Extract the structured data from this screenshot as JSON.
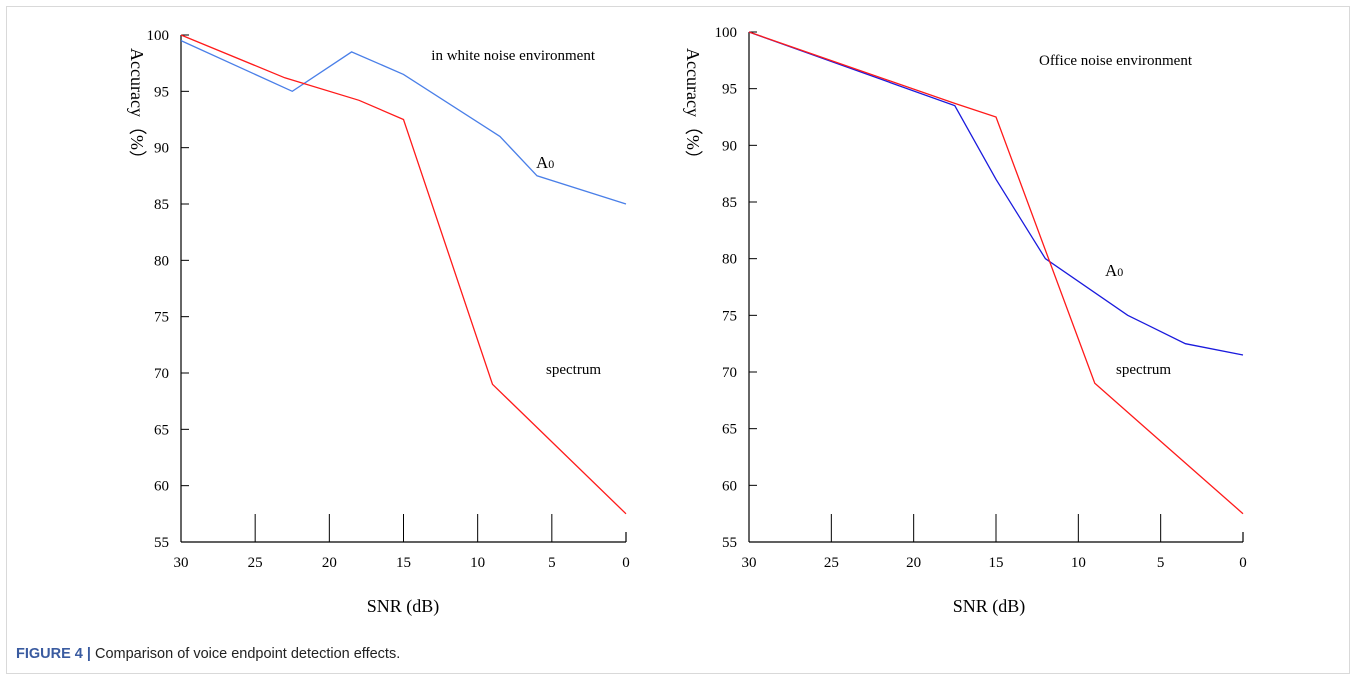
{
  "chart_data": [
    {
      "type": "line",
      "title": "",
      "xlabel": "SNR (dB)",
      "ylabel": "Accuracy（%）",
      "xlim": [
        30,
        0
      ],
      "ylim": [
        55,
        100
      ],
      "x_ticks": [
        "30",
        "25",
        "20",
        "15",
        "10",
        "5",
        "0"
      ],
      "y_ticks": [
        "55",
        "60",
        "65",
        "70",
        "75",
        "80",
        "85",
        "90",
        "95",
        "100"
      ],
      "annotation": "in white noise environment",
      "grid": false,
      "series": [
        {
          "name": "A0",
          "color": "#4a7fe8",
          "points": [
            [
              30,
              99.5
            ],
            [
              22.5,
              95
            ],
            [
              18.5,
              98.5
            ],
            [
              15,
              96.5
            ],
            [
              8.5,
              91
            ],
            [
              6,
              87.5
            ],
            [
              0,
              85
            ]
          ]
        },
        {
          "name": "spectrum",
          "color": "#ff1a1a",
          "points": [
            [
              30,
              100
            ],
            [
              23,
              96.2
            ],
            [
              18,
              94.2
            ],
            [
              15,
              92.5
            ],
            [
              9,
              69
            ],
            [
              0,
              57.5
            ]
          ]
        }
      ]
    },
    {
      "type": "line",
      "title": "",
      "xlabel": "SNR (dB)",
      "ylabel": "Accuracy（%）",
      "xlim": [
        30,
        0
      ],
      "ylim": [
        55,
        100
      ],
      "x_ticks": [
        "30",
        "25",
        "20",
        "15",
        "10",
        "5",
        "0"
      ],
      "y_ticks": [
        "55",
        "60",
        "65",
        "70",
        "75",
        "80",
        "85",
        "90",
        "95",
        "100"
      ],
      "annotation": "Office noise environment",
      "grid": false,
      "series": [
        {
          "name": "A0",
          "color": "#1a1add",
          "points": [
            [
              30,
              100
            ],
            [
              17.5,
              93.5
            ],
            [
              15,
              87
            ],
            [
              12,
              80
            ],
            [
              7,
              75
            ],
            [
              3.5,
              72.5
            ],
            [
              0,
              71.5
            ]
          ]
        },
        {
          "name": "spectrum",
          "color": "#ff1a1a",
          "points": [
            [
              30,
              100
            ],
            [
              17.5,
              93.7
            ],
            [
              15,
              92.5
            ],
            [
              9,
              69
            ],
            [
              0,
              57.5
            ]
          ]
        }
      ]
    }
  ],
  "caption": {
    "figure_label": "FIGURE 4",
    "separator": "|",
    "text": "Comparison of voice endpoint detection effects."
  }
}
